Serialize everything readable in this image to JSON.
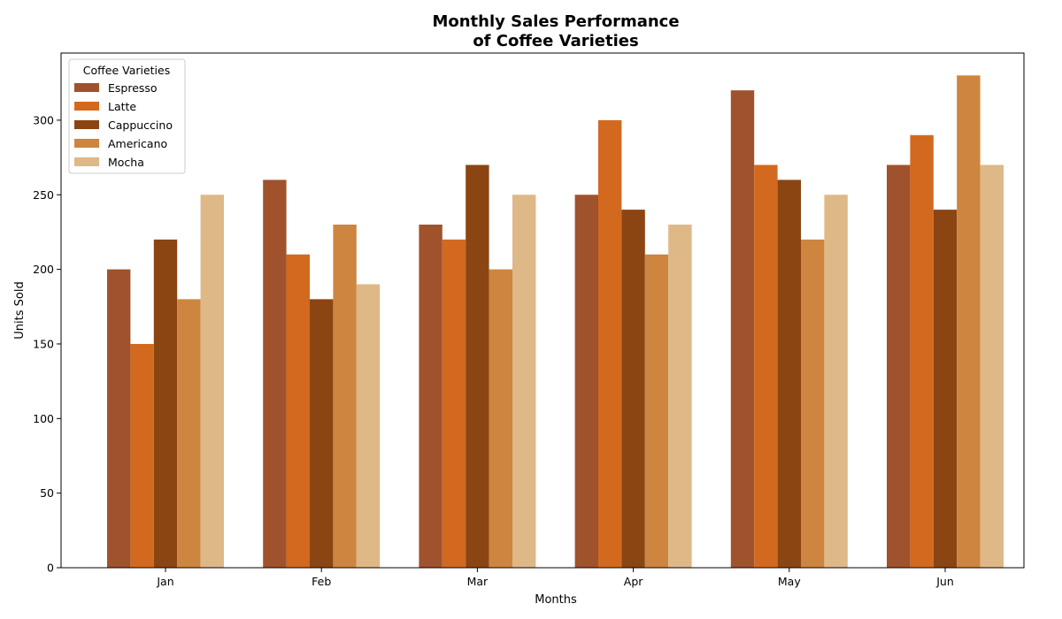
{
  "chart_data": {
    "type": "bar",
    "title_lines": [
      "Monthly Sales Performance",
      "of Coffee Varieties"
    ],
    "xlabel": "Months",
    "ylabel": "Units Sold",
    "categories": [
      "Jan",
      "Feb",
      "Mar",
      "Apr",
      "May",
      "Jun"
    ],
    "ylim": [
      0,
      345
    ],
    "yticks": [
      0,
      50,
      100,
      150,
      200,
      250,
      300
    ],
    "grid": false,
    "legend": {
      "title": "Coffee Varieties",
      "placement": "top-left"
    },
    "series": [
      {
        "name": "Espresso",
        "color": "#A0522D",
        "values": [
          200,
          260,
          230,
          250,
          320,
          270
        ]
      },
      {
        "name": "Latte",
        "color": "#D2691E",
        "values": [
          150,
          210,
          220,
          300,
          270,
          290
        ]
      },
      {
        "name": "Cappuccino",
        "color": "#8B4513",
        "values": [
          220,
          180,
          270,
          240,
          260,
          240
        ]
      },
      {
        "name": "Americano",
        "color": "#CD853F",
        "values": [
          180,
          230,
          200,
          210,
          220,
          330
        ]
      },
      {
        "name": "Mocha",
        "color": "#DEB887",
        "values": [
          250,
          190,
          250,
          230,
          250,
          270
        ]
      }
    ]
  }
}
